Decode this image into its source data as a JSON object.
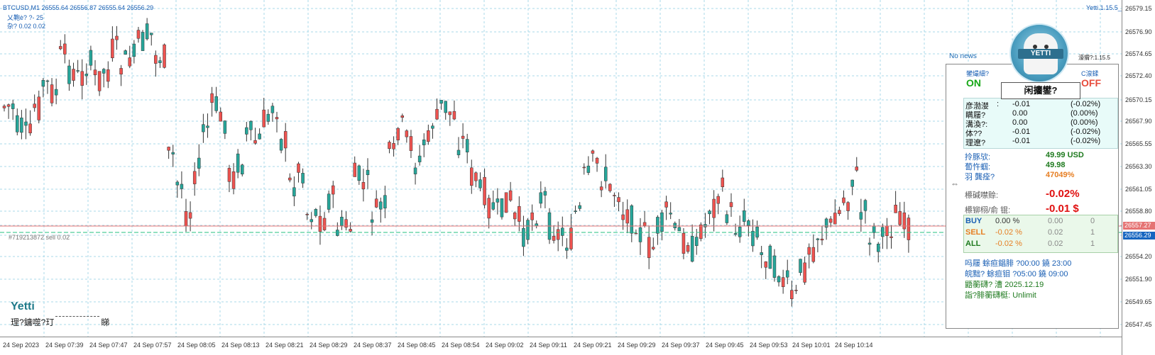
{
  "chart": {
    "symbol_header": "BTCUSD,M1  26555.64 26556.87 26555.64 26556.29",
    "info_line1": "乂鞄è?  ?- 25",
    "info_line2": "杂? 0.02    0.02",
    "top_right_label": "Yetti.1.15.5_fix",
    "order_line_label": "#719213872 sell 0.02",
    "price_labels": [
      "26579.15",
      "26576.90",
      "26574.65",
      "26572.40",
      "26570.15",
      "26567.90",
      "26565.55",
      "26563.30",
      "26561.05",
      "26558.80",
      "26557.27",
      "26556.29",
      "26554.20",
      "26551.90",
      "26549.65",
      "26547.45"
    ],
    "current_price": "26556.29",
    "order_price": "26557.27",
    "time_labels": [
      "24 Sep 2023",
      "24 Sep 07:39",
      "24 Sep 07:47",
      "24 Sep 07:57",
      "24 Sep 08:05",
      "24 Sep 08:13",
      "24 Sep 08:21",
      "24 Sep 08:29",
      "24 Sep 08:37",
      "24 Sep 08:45",
      "24 Sep 08:54",
      "24 Sep 09:02",
      "24 Sep 09:11",
      "24 Sep 09:21",
      "24 Sep 09:29",
      "24 Sep 09:37",
      "24 Sep 09:45",
      "24 Sep 09:53",
      "24 Sep 10:01",
      "24 Sep 10:14"
    ],
    "colors": {
      "up": "#26a69a",
      "down": "#ef5350",
      "grid": "#a8d8e8",
      "order_line": "#e57373",
      "bid_line": "#26c281",
      "current_tag": "#1565c0",
      "order_tag": "#e57373"
    }
  },
  "widget": {
    "no_news": "No news",
    "version": "濠猬?:1.15.5",
    "logo_text": "YETTI",
    "toggle_left_label": "鐢熶細?",
    "toggle_left_value": "ON",
    "toggle_right_label": "C湶鍒",
    "toggle_right_value": "OFF",
    "main_button": "闲攟鐢?",
    "arrow": "⇔",
    "profit_rows": [
      {
        "label": "彦渤漤",
        "sep": ":",
        "value": "-0.01",
        "pct": "(-0.02%)"
      },
      {
        "label": "瞒屦?",
        "sep": "",
        "value": "0.00",
        "pct": "(0.00%)"
      },
      {
        "label": "溝渙?:",
        "sep": "",
        "value": "0.00",
        "pct": "(0.00%)"
      },
      {
        "label": "体??",
        "sep": "",
        "value": "-0.01",
        "pct": "(-0.02%)"
      },
      {
        "label": "理遼?",
        "sep": "",
        "value": "-0.01",
        "pct": "(-0.02%)"
      }
    ],
    "account": [
      {
        "label": "拎豚欤:",
        "value": "49.99 USD"
      },
      {
        "label": "蔔忤蝈:",
        "value": "49.98"
      },
      {
        "label": "羽 龔痊?",
        "value": "47049%"
      }
    ],
    "drawdown": [
      {
        "label": "櫒碱噤赊:",
        "value": "-0.02%"
      },
      {
        "label": "櫒铆栩/俞   锟:",
        "value": "-0.01 $"
      }
    ],
    "positions": [
      {
        "side": "BUY",
        "pct": "0.00 %",
        "lots": "0.00",
        "count": "0"
      },
      {
        "side": "SELL",
        "pct": "-0.02 %",
        "lots": "0.02",
        "count": "1"
      },
      {
        "side": "ALL",
        "pct": "-0.02 %",
        "lots": "0.02",
        "count": "1"
      }
    ],
    "schedule": [
      {
        "text": "吗屦     蜍疸錩腓 ?00:00 鐃 23:00"
      },
      {
        "text": "皖黜? 蜍疸钼 ?05:00 鐃 09:00"
      },
      {
        "text": "鼯蘅礴?  漕 2025.12.19"
      },
      {
        "text": "詣?腓蘅礴梃: Unlimit"
      }
    ]
  },
  "bottom": {
    "brand": "Yetti",
    "status_left": "理?鏞噬?玎",
    "status_right": "睇"
  }
}
